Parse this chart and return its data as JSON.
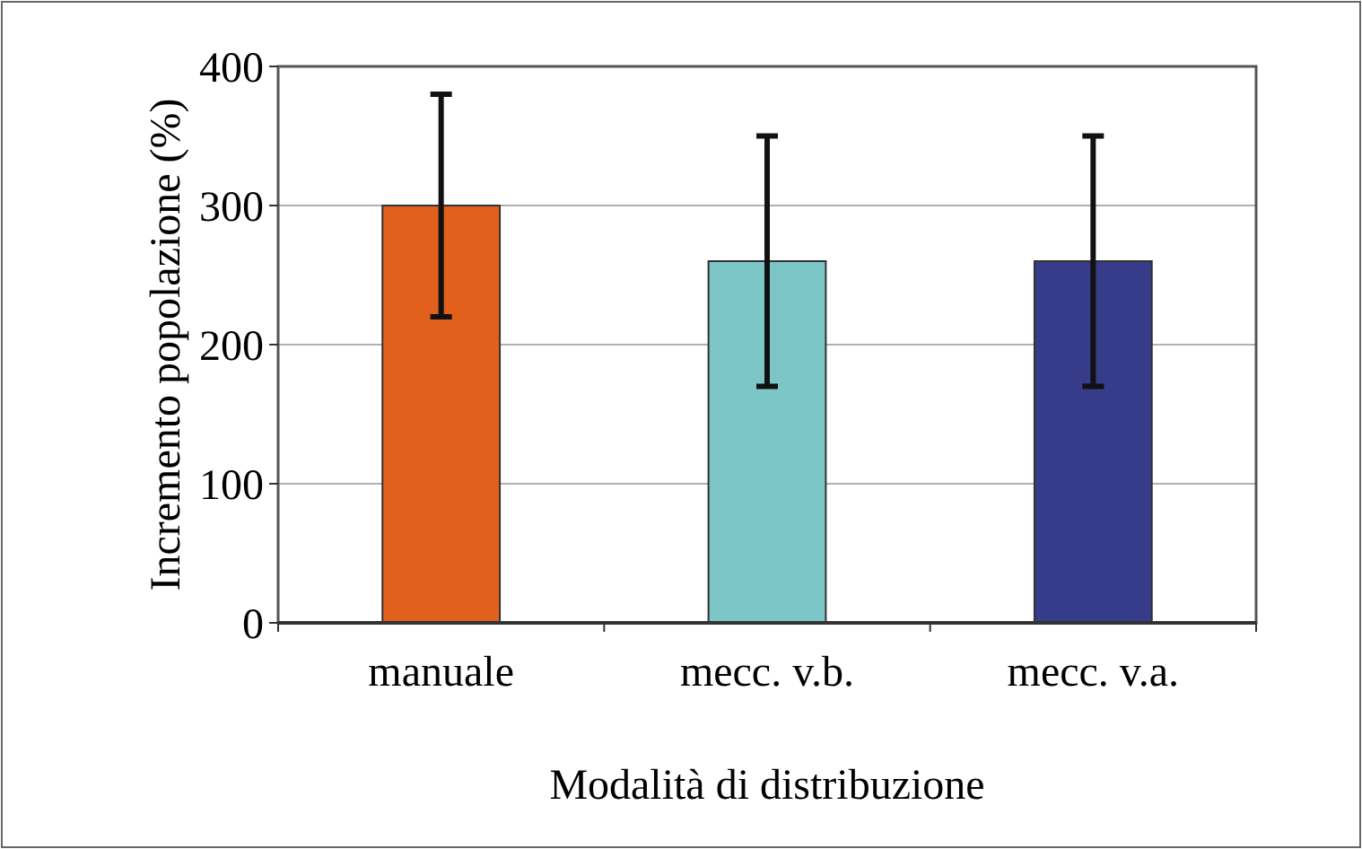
{
  "chart_data": {
    "type": "bar",
    "xlabel": "Modalità di distribuzione",
    "ylabel": "Incremento popolazione (%)",
    "categories": [
      "manuale",
      "mecc. v.b.",
      "mecc. v.a."
    ],
    "values": [
      300,
      260,
      260
    ],
    "colors": [
      "#e0601c",
      "#7cc6c8",
      "#363b8a"
    ],
    "errors": [
      80,
      90,
      90
    ],
    "ylim": [
      0,
      400
    ],
    "yticks": [
      0,
      100,
      200,
      300,
      400
    ],
    "grid": "y"
  }
}
